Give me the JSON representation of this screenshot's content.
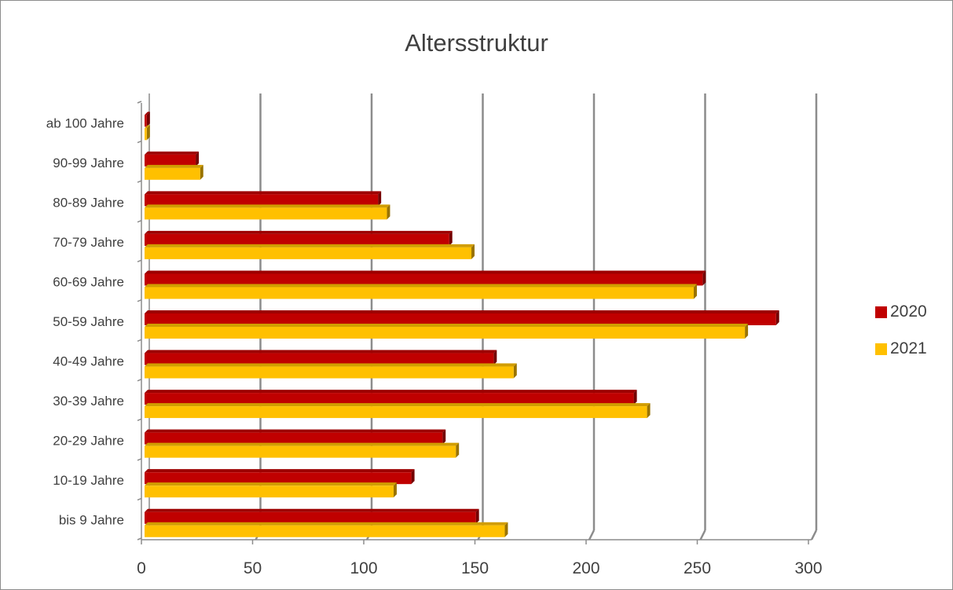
{
  "chart_data": {
    "type": "bar",
    "orientation": "horizontal",
    "title": "Altersstruktur",
    "xlabel": "",
    "ylabel": "",
    "categories": [
      "bis 9 Jahre",
      "10-19 Jahre",
      "20-29 Jahre",
      "30-39 Jahre",
      "40-49 Jahre",
      "50-59 Jahre",
      "60-69 Jahre",
      "70-79 Jahre",
      "80-89 Jahre",
      "90-99 Jahre",
      "ab 100 Jahre"
    ],
    "series": [
      {
        "name": "2020",
        "color": "#c00000",
        "values": [
          149,
          120,
          134,
          220,
          157,
          284,
          251,
          137,
          105,
          23,
          1
        ]
      },
      {
        "name": "2021",
        "color": "#ffc000",
        "values": [
          162,
          112,
          140,
          226,
          166,
          270,
          247,
          147,
          109,
          25,
          1
        ]
      }
    ],
    "xlim": [
      0,
      300
    ],
    "xticks": [
      "0",
      "50",
      "100",
      "150",
      "200",
      "250",
      "300"
    ],
    "grid": true,
    "legend_position": "right"
  }
}
